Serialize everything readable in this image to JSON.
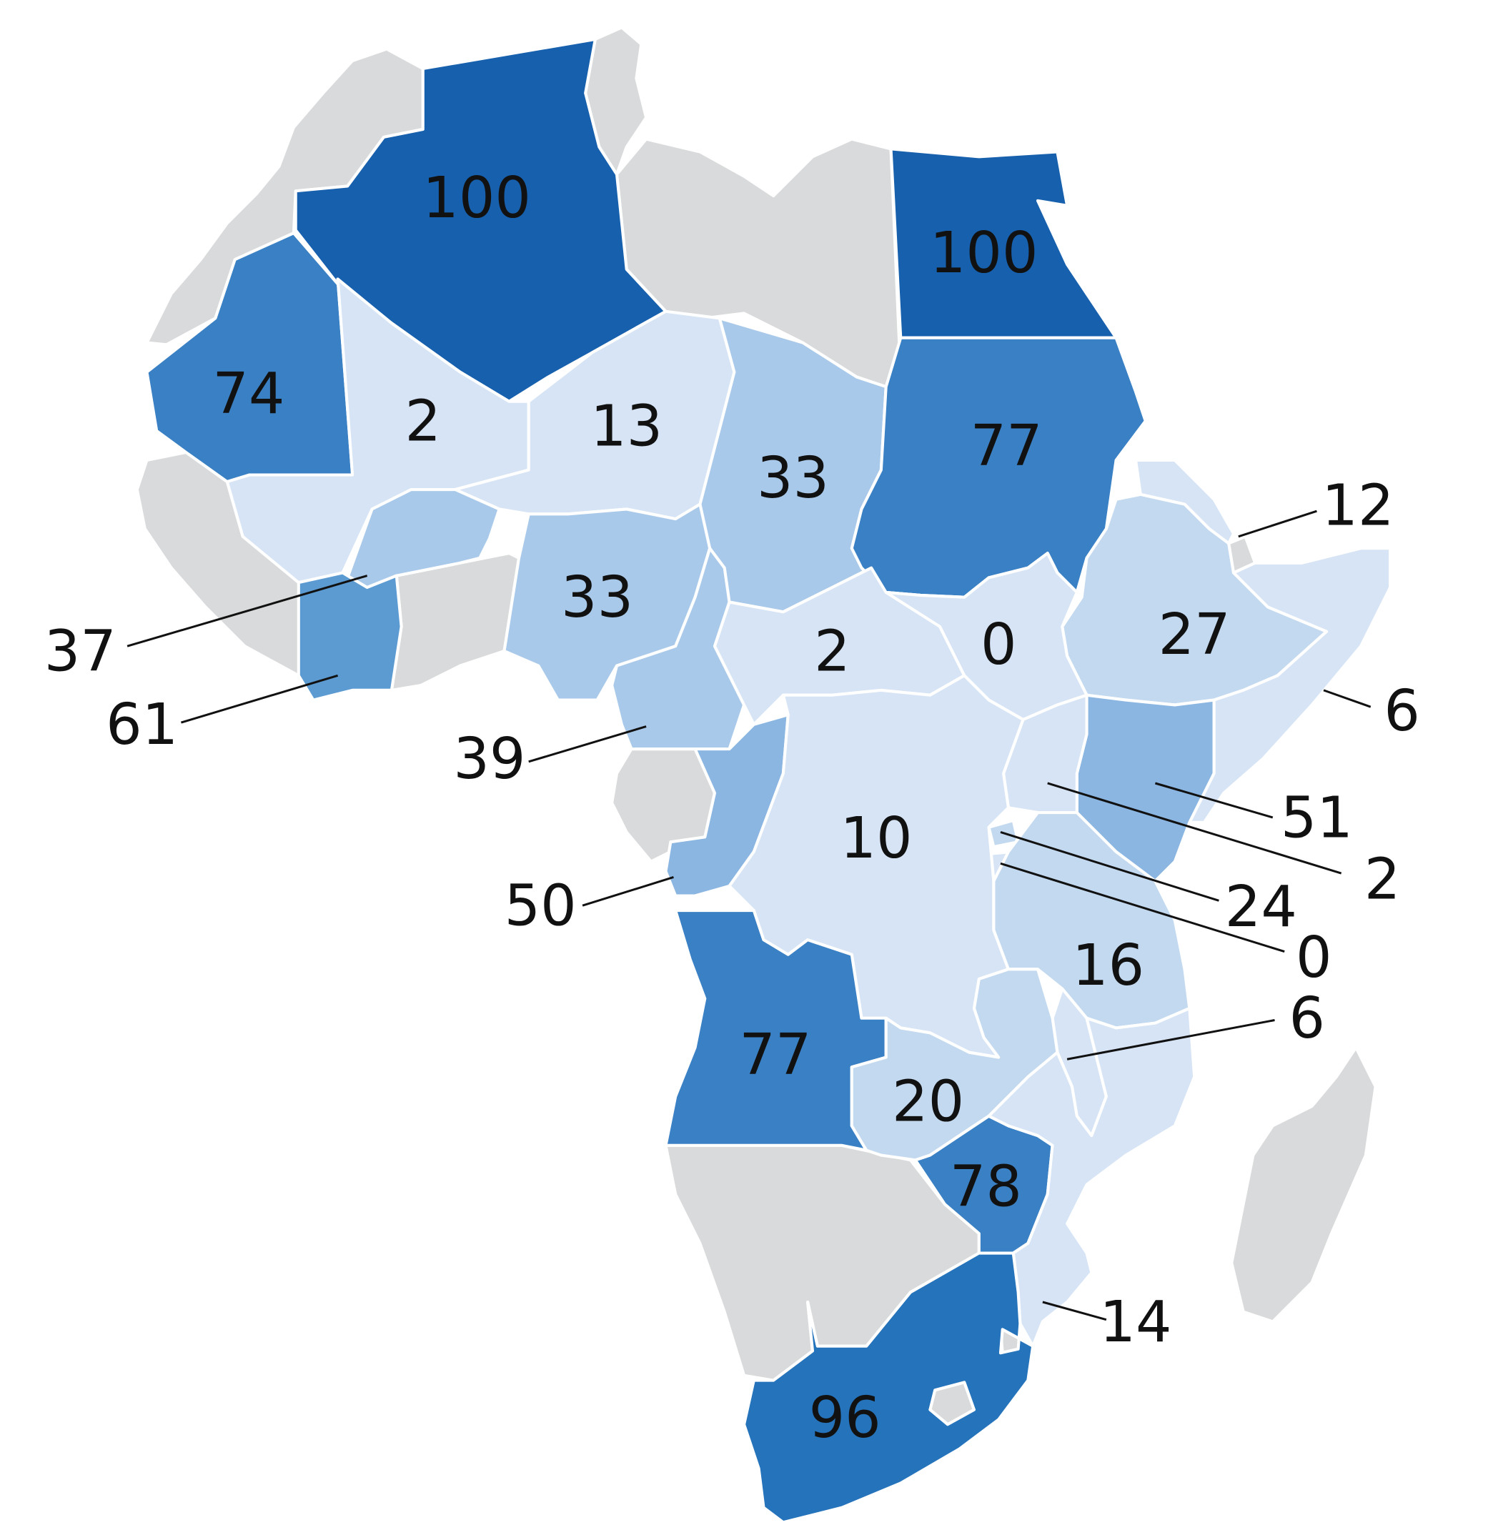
{
  "map": {
    "colors": {
      "no_data": "#d9dadb",
      "scale": [
        "#d6e4f5",
        "#c3d9f0",
        "#a9c9ea",
        "#8bb6e1",
        "#5c9bd2",
        "#3a80c4",
        "#2573bb",
        "#1760ad"
      ]
    },
    "regions": [
      {
        "id": "algeria",
        "value": 100,
        "label": "100"
      },
      {
        "id": "egypt",
        "value": 100,
        "label": "100"
      },
      {
        "id": "mauritania",
        "value": 74,
        "label": "74"
      },
      {
        "id": "mali",
        "value": 2,
        "label": "2"
      },
      {
        "id": "niger",
        "value": 13,
        "label": "13"
      },
      {
        "id": "chad",
        "value": 33,
        "label": "33"
      },
      {
        "id": "sudan",
        "value": 77,
        "label": "77"
      },
      {
        "id": "eritrea",
        "value": 12,
        "label": "12"
      },
      {
        "id": "ethiopia",
        "value": 27,
        "label": "27"
      },
      {
        "id": "somalia",
        "value": 6,
        "label": "6"
      },
      {
        "id": "burkina-faso",
        "value": 37,
        "label": "37"
      },
      {
        "id": "cote-divoire",
        "value": 61,
        "label": "61"
      },
      {
        "id": "nigeria",
        "value": 33,
        "label": "33"
      },
      {
        "id": "cameroon",
        "value": 39,
        "label": "39"
      },
      {
        "id": "central-african-republic",
        "value": 2,
        "label": "2"
      },
      {
        "id": "south-sudan",
        "value": 0,
        "label": "0"
      },
      {
        "id": "kenya",
        "value": 51,
        "label": "51"
      },
      {
        "id": "uganda",
        "value": 2,
        "label": "2"
      },
      {
        "id": "rwanda",
        "value": 24,
        "label": "24"
      },
      {
        "id": "burundi",
        "value": 0,
        "label": "0"
      },
      {
        "id": "congo",
        "value": 50,
        "label": "50"
      },
      {
        "id": "dr-congo",
        "value": 10,
        "label": "10"
      },
      {
        "id": "tanzania",
        "value": 16,
        "label": "16"
      },
      {
        "id": "malawi",
        "value": 6,
        "label": "6"
      },
      {
        "id": "angola",
        "value": 77,
        "label": "77"
      },
      {
        "id": "zambia",
        "value": 20,
        "label": "20"
      },
      {
        "id": "zimbabwe",
        "value": 78,
        "label": "78"
      },
      {
        "id": "mozambique",
        "value": 14,
        "label": "14"
      },
      {
        "id": "south-africa",
        "value": 96,
        "label": "96"
      }
    ]
  }
}
